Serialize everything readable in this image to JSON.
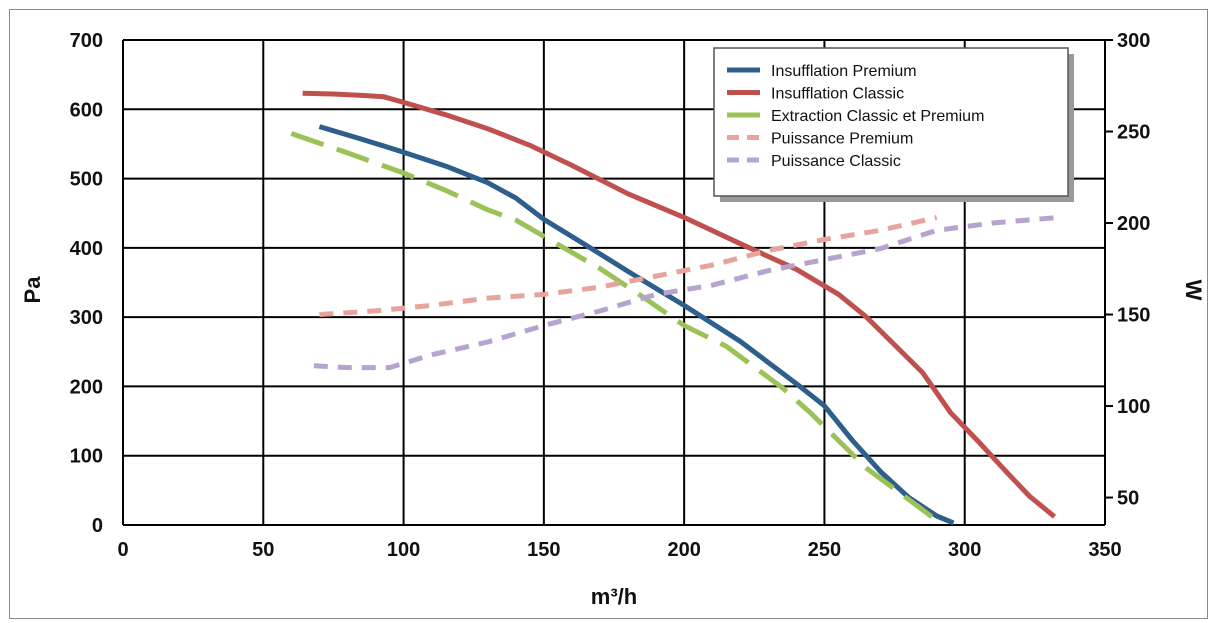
{
  "chart_data": {
    "type": "line",
    "xlabel": "m³/h",
    "ylabel": "Pa",
    "y2label": "W",
    "xlim": [
      0,
      350
    ],
    "ylim": [
      0,
      700
    ],
    "y2lim": [
      35,
      300
    ],
    "x_ticks": [
      "0",
      "50",
      "100",
      "150",
      "200",
      "250",
      "300",
      "350"
    ],
    "y_ticks": [
      "0",
      "100",
      "200",
      "300",
      "400",
      "500",
      "600",
      "700"
    ],
    "y2_ticks": [
      "50",
      "100",
      "150",
      "200",
      "250",
      "300"
    ],
    "grid": true,
    "legend_position": "top-right",
    "series": [
      {
        "name": "Insufflation Premium",
        "axis": "left",
        "color": "#2e5e8c",
        "style": "solid",
        "points": [
          [
            70,
            575
          ],
          [
            85,
            557
          ],
          [
            100,
            538
          ],
          [
            115,
            518
          ],
          [
            130,
            494
          ],
          [
            140,
            472
          ],
          [
            150,
            441
          ],
          [
            165,
            404
          ],
          [
            180,
            366
          ],
          [
            200,
            317
          ],
          [
            220,
            265
          ],
          [
            240,
            204
          ],
          [
            250,
            172
          ],
          [
            260,
            122
          ],
          [
            270,
            77
          ],
          [
            280,
            40
          ],
          [
            290,
            13
          ],
          [
            296,
            3
          ]
        ]
      },
      {
        "name": "Insufflation Classic",
        "axis": "left",
        "color": "#c0504d",
        "style": "solid",
        "points": [
          [
            64,
            623
          ],
          [
            75,
            622
          ],
          [
            85,
            620
          ],
          [
            93,
            618
          ],
          [
            100,
            610
          ],
          [
            115,
            592
          ],
          [
            130,
            572
          ],
          [
            145,
            548
          ],
          [
            160,
            519
          ],
          [
            180,
            478
          ],
          [
            200,
            444
          ],
          [
            220,
            406
          ],
          [
            240,
            369
          ],
          [
            255,
            333
          ],
          [
            265,
            300
          ],
          [
            275,
            260
          ],
          [
            285,
            220
          ],
          [
            295,
            162
          ],
          [
            305,
            120
          ],
          [
            315,
            76
          ],
          [
            323,
            42
          ],
          [
            332,
            12
          ]
        ]
      },
      {
        "name": "Extraction Classic et Premium",
        "axis": "left",
        "color": "#9bc257",
        "style": "long-dash",
        "points": [
          [
            60,
            565
          ],
          [
            80,
            537
          ],
          [
            100,
            508
          ],
          [
            115,
            483
          ],
          [
            130,
            455
          ],
          [
            140,
            440
          ],
          [
            155,
            405
          ],
          [
            170,
            370
          ],
          [
            185,
            330
          ],
          [
            200,
            288
          ],
          [
            215,
            258
          ],
          [
            225,
            228
          ],
          [
            235,
            198
          ],
          [
            245,
            162
          ],
          [
            255,
            122
          ],
          [
            265,
            82
          ],
          [
            275,
            52
          ],
          [
            285,
            22
          ],
          [
            292,
            0
          ]
        ]
      },
      {
        "name": "Puissance Premium",
        "axis": "right",
        "color": "#e6a49d",
        "style": "dash",
        "points": [
          [
            70,
            150
          ],
          [
            90,
            152
          ],
          [
            110,
            155
          ],
          [
            130,
            159
          ],
          [
            150,
            161
          ],
          [
            170,
            165
          ],
          [
            190,
            171
          ],
          [
            210,
            177
          ],
          [
            230,
            185
          ],
          [
            250,
            191
          ],
          [
            270,
            196
          ],
          [
            290,
            203
          ]
        ]
      },
      {
        "name": "Puissance Classic",
        "axis": "right",
        "color": "#b6a3cf",
        "style": "dash",
        "points": [
          [
            68,
            122
          ],
          [
            80,
            121
          ],
          [
            95,
            121
          ],
          [
            110,
            128
          ],
          [
            130,
            135
          ],
          [
            150,
            144
          ],
          [
            170,
            152
          ],
          [
            190,
            161
          ],
          [
            210,
            166
          ],
          [
            230,
            174
          ],
          [
            250,
            180
          ],
          [
            270,
            186
          ],
          [
            290,
            196
          ],
          [
            310,
            200
          ],
          [
            333,
            203
          ]
        ]
      }
    ]
  }
}
